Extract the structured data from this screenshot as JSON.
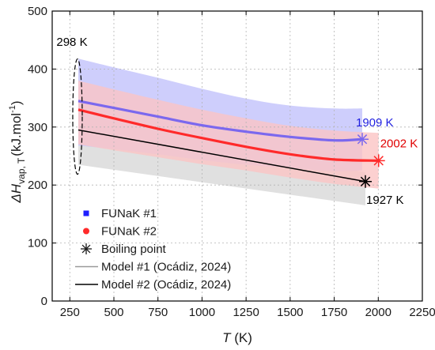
{
  "chart_data": {
    "type": "line",
    "xlabel": "T (K)",
    "xlabel_italic": "T",
    "xlabel_unit": "(K)",
    "ylabel_parts": {
      "delta": "ΔH",
      "sub": "vap, T",
      "unit_a": "(kJ.mol",
      "sup": "-1",
      "unit_b": ")"
    },
    "xlim": [
      150,
      2250
    ],
    "ylim": [
      0,
      500
    ],
    "xticks": [
      250,
      500,
      750,
      1000,
      1250,
      1500,
      1750,
      2000,
      2250
    ],
    "yticks": [
      0,
      100,
      200,
      300,
      400,
      500
    ],
    "grid": true,
    "legend_position": "lower-left",
    "colors": {
      "fun1": "#7b68ee",
      "fun1_band": "#c6c6fb",
      "fun2": "#ff2a2a",
      "fun2_band": "#fbc4c4",
      "model2": "#000000",
      "model2_band": "#dedede",
      "anno_blue": "#1f1fe0",
      "anno_red": "#e00000",
      "anno_black": "#000000"
    },
    "series": [
      {
        "name": "FUNaK #1",
        "x": [
          298,
          500,
          750,
          1000,
          1250,
          1500,
          1750,
          1909
        ],
        "values": [
          345,
          333,
          318,
          303,
          292,
          283,
          277,
          279
        ],
        "band_upper": [
          418,
          403,
          385,
          366,
          349,
          337,
          332,
          332
        ],
        "band_lower": [
          268,
          262,
          253,
          243,
          235,
          229,
          224,
          225
        ]
      },
      {
        "name": "FUNaK #2",
        "x": [
          298,
          500,
          750,
          1000,
          1250,
          1500,
          1750,
          2002
        ],
        "values": [
          330,
          315,
          297,
          281,
          266,
          253,
          244,
          242
        ],
        "band_upper": [
          380,
          365,
          347,
          330,
          315,
          302,
          294,
          290
        ],
        "band_lower": [
          270,
          260,
          248,
          236,
          225,
          213,
          202,
          194
        ]
      },
      {
        "name": "Model #2 (Ocádiz, 2024)",
        "x": [
          298,
          1927
        ],
        "values": [
          295,
          206
        ],
        "band_upper": [
          320,
          222
        ],
        "band_lower": [
          235,
          165
        ]
      }
    ],
    "boiling_points": [
      {
        "label": "1909 K",
        "x": 1909,
        "y": 279
      },
      {
        "label": "2002 K",
        "x": 2002,
        "y": 242
      },
      {
        "label": "1927 K",
        "x": 1927,
        "y": 206
      }
    ],
    "annotations": [
      {
        "label": "298 K",
        "x": 298,
        "y_center": 318
      }
    ],
    "legend": [
      {
        "label": "FUNaK #1",
        "marker": "square"
      },
      {
        "label": "FUNaK #2",
        "marker": "circle"
      },
      {
        "label": "Boiling point",
        "marker": "asterisk"
      },
      {
        "label": "Model #1 (Ocádiz, 2024)",
        "marker": "line-gray"
      },
      {
        "label": "Model #2 (Ocádiz, 2024)",
        "marker": "line-black"
      }
    ]
  }
}
